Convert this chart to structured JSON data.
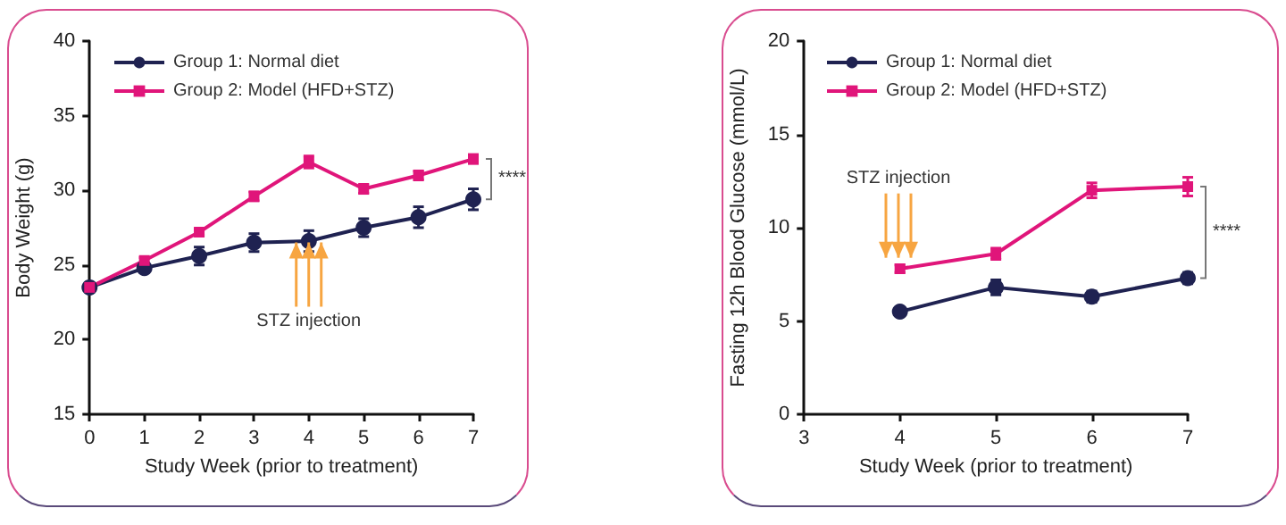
{
  "chart_data": [
    {
      "type": "line",
      "xlabel": "Study Week (prior to treatment)",
      "ylabel": "Body Weight (g)",
      "x": [
        0,
        1,
        2,
        3,
        4,
        5,
        6,
        7
      ],
      "xlim": [
        0,
        7
      ],
      "xticks": [
        0,
        1,
        2,
        3,
        4,
        5,
        6,
        7
      ],
      "ylim": [
        15,
        40
      ],
      "yticks": [
        15,
        20,
        25,
        30,
        35,
        40
      ],
      "grid": false,
      "legend": "top left",
      "line_style": "solid",
      "series": [
        {
          "name": "Group 1: Normal diet",
          "color": "#1f2251",
          "marker": "circle",
          "values": [
            23.5,
            24.8,
            25.6,
            26.5,
            26.6,
            27.5,
            28.2,
            29.4
          ],
          "errors": [
            0.3,
            0.3,
            0.6,
            0.6,
            0.7,
            0.6,
            0.7,
            0.7
          ]
        },
        {
          "name": "Group 2: Model (HFD+STZ)",
          "color": "#e0157a",
          "marker": "square",
          "values": [
            23.5,
            25.3,
            27.2,
            29.6,
            31.9,
            30.1,
            31.0,
            32.1
          ],
          "errors": [
            0.2,
            0.2,
            0.2,
            0.3,
            0.4,
            0.3,
            0.3,
            0.3
          ]
        }
      ],
      "annotations": [
        "****",
        "STZ injection"
      ]
    },
    {
      "type": "line",
      "xlabel": "Study Week (prior to treatment)",
      "ylabel": "Fasting 12h Blood Glucose (mmol/L)",
      "x": [
        4,
        5,
        6,
        7
      ],
      "xlim": [
        3,
        7
      ],
      "xticks": [
        3,
        4,
        5,
        6,
        7
      ],
      "ylim": [
        0,
        20
      ],
      "yticks": [
        0,
        5,
        10,
        15,
        20
      ],
      "grid": false,
      "legend": "top left",
      "line_style": "solid",
      "series": [
        {
          "name": "Group 1: Normal diet",
          "color": "#1f2251",
          "marker": "circle",
          "values": [
            5.5,
            6.8,
            6.3,
            7.3
          ],
          "errors": [
            0.2,
            0.4,
            0.3,
            0.3
          ]
        },
        {
          "name": "Group 2: Model (HFD+STZ)",
          "color": "#e0157a",
          "marker": "square",
          "values": [
            7.8,
            8.6,
            12.0,
            12.2
          ],
          "errors": [
            0.2,
            0.3,
            0.4,
            0.5
          ]
        }
      ],
      "annotations": [
        "****",
        "STZ injection"
      ]
    }
  ]
}
